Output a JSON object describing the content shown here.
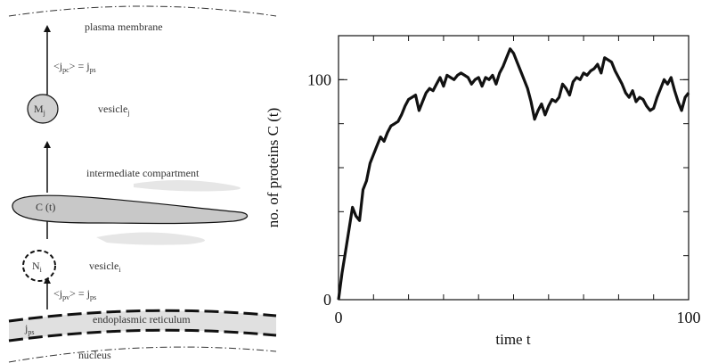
{
  "diagram": {
    "labels": {
      "plasma_membrane": "plasma membrane",
      "flux_pc_left": "<j",
      "flux_pc_sub": "pc",
      "flux_pc_mid": "> = j",
      "flux_pc_sub2": "ps",
      "vesicle_j_node": "M",
      "vesicle_j_node_sub": "j",
      "vesicle_j": "vesicle",
      "vesicle_j_sub": "j",
      "intermediate": "intermediate compartment",
      "compartment": "C (t)",
      "vesicle_i_node": "N",
      "vesicle_i_node_sub": "i",
      "vesicle_i": "vesicle",
      "vesicle_i_sub": "i",
      "flux_pv_left": "<j",
      "flux_pv_sub": "pv",
      "flux_pv_mid": "> = j",
      "flux_pv_sub2": "ps",
      "er": "endoplasmic reticulum",
      "jps": "j",
      "jps_sub": "ps",
      "nucleus": "nucleus"
    },
    "colors": {
      "compartment_fill": "#c8c8c8",
      "node_fill": "#d0d0d0",
      "er_band": "#e0e0e0",
      "haze": "#e6e6e6",
      "line": "#111111"
    }
  },
  "chart_data": {
    "type": "line",
    "xlabel": "time t",
    "ylabel": "no. of proteins C (t)",
    "xlim": [
      0,
      100
    ],
    "ylim": [
      0,
      120
    ],
    "xticks": [
      0,
      100
    ],
    "yticks": [
      0,
      100
    ],
    "grid": false,
    "series": [
      {
        "values_x": [
          0,
          1,
          2,
          3,
          4,
          5,
          6,
          7,
          8,
          9,
          10,
          11,
          12,
          13,
          14,
          15,
          16,
          17,
          18,
          19,
          20,
          21,
          22,
          23,
          24,
          25,
          26,
          27,
          28,
          29,
          30,
          31,
          32,
          33,
          34,
          35,
          36,
          37,
          38,
          39,
          40,
          41,
          42,
          43,
          44,
          45,
          46,
          47,
          48,
          49,
          50,
          51,
          52,
          53,
          54,
          55,
          56,
          57,
          58,
          59,
          60,
          61,
          62,
          63,
          64,
          65,
          66,
          67,
          68,
          69,
          70,
          71,
          72,
          73,
          74,
          75,
          76,
          77,
          78,
          79,
          80,
          81,
          82,
          83,
          84,
          85,
          86,
          87,
          88,
          89,
          90,
          91,
          92,
          93,
          94,
          95,
          96,
          97,
          98,
          99,
          100
        ],
        "values_y": [
          0,
          12,
          22,
          32,
          42,
          38,
          36,
          50,
          54,
          62,
          66,
          70,
          74,
          72,
          76,
          79,
          80,
          81,
          84,
          88,
          91,
          92,
          93,
          86,
          90,
          94,
          96,
          95,
          98,
          101,
          97,
          102,
          101,
          100,
          102,
          103,
          102,
          101,
          98,
          100,
          101,
          97,
          101,
          100,
          102,
          98,
          103,
          106,
          110,
          114,
          112,
          108,
          104,
          100,
          96,
          90,
          82,
          86,
          89,
          84,
          88,
          91,
          90,
          92,
          98,
          96,
          93,
          99,
          101,
          100,
          103,
          102,
          104,
          105,
          107,
          103,
          110,
          109,
          108,
          104,
          101,
          98,
          94,
          92,
          95,
          90,
          92,
          91,
          88,
          86,
          87,
          92,
          96,
          100,
          98,
          101,
          95,
          90,
          86,
          92,
          94
        ]
      }
    ]
  }
}
